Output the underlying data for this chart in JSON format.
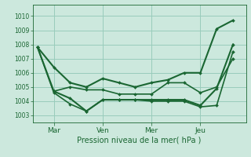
{
  "background_color": "#cce8dd",
  "grid_color": "#99ccbb",
  "line_color": "#1a6632",
  "marker_color": "#1a6632",
  "xlabel": "Pression niveau de la mer( hPa )",
  "ylim": [
    1002.5,
    1010.8
  ],
  "yticks": [
    1003,
    1004,
    1005,
    1006,
    1007,
    1008,
    1009,
    1010
  ],
  "xlim": [
    -0.3,
    12.8
  ],
  "xtick_labels": [
    "Mar",
    "Ven",
    "Mer",
    "Jeu"
  ],
  "xtick_positions": [
    1,
    4,
    7,
    10
  ],
  "series": [
    {
      "x": [
        0,
        1,
        2,
        3,
        4,
        5,
        6,
        7,
        8,
        9,
        10,
        11,
        12
      ],
      "y": [
        1007.8,
        1006.4,
        1005.3,
        1005.0,
        1005.6,
        1005.3,
        1005.0,
        1005.3,
        1005.5,
        1006.0,
        1006.0,
        1009.1,
        1009.7
      ],
      "lw": 1.5
    },
    {
      "x": [
        0,
        1,
        2,
        3,
        4,
        5,
        6,
        7,
        8,
        9,
        10,
        11,
        12
      ],
      "y": [
        1007.8,
        1004.7,
        1004.2,
        1003.3,
        1004.1,
        1004.1,
        1004.1,
        1004.1,
        1004.1,
        1004.1,
        1003.7,
        1004.9,
        1008.0
      ],
      "lw": 1.5
    },
    {
      "x": [
        0,
        1,
        2,
        3,
        4,
        5,
        6,
        7,
        8,
        9,
        10,
        11,
        12
      ],
      "y": [
        1007.8,
        1004.6,
        1003.8,
        1003.3,
        1004.1,
        1004.1,
        1004.1,
        1004.0,
        1004.0,
        1004.0,
        1003.6,
        1003.7,
        1007.5
      ],
      "lw": 1.2
    },
    {
      "x": [
        1,
        2,
        3,
        4,
        5,
        6,
        7,
        8,
        9,
        10,
        11,
        12
      ],
      "y": [
        1004.7,
        1005.0,
        1004.8,
        1004.8,
        1004.5,
        1004.5,
        1004.5,
        1005.3,
        1005.3,
        1004.6,
        1005.0,
        1007.0
      ],
      "lw": 1.2
    }
  ]
}
